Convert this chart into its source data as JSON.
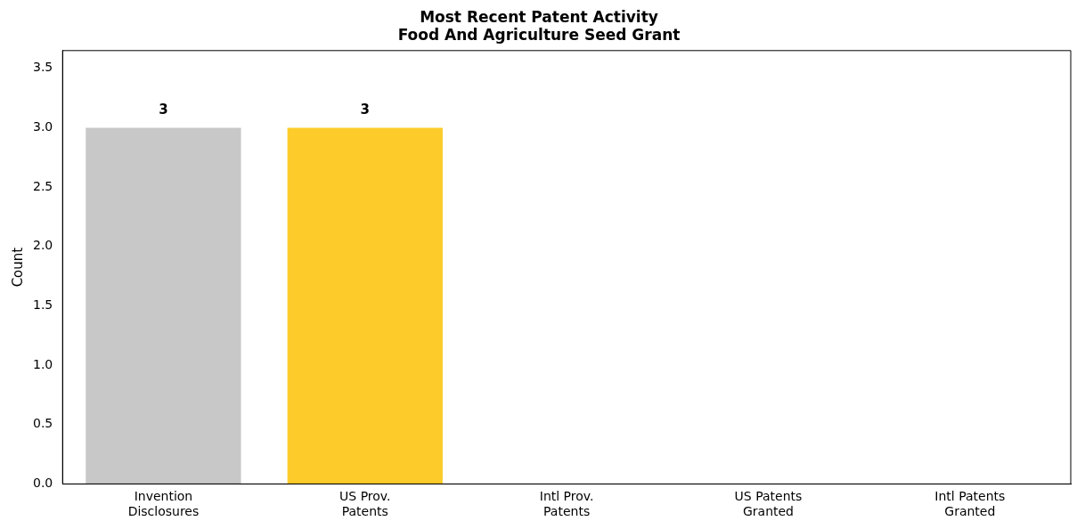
{
  "chart_data": {
    "type": "bar",
    "title": "Most Recent Patent Activity",
    "subtitle": "Food And Agriculture Seed Grant",
    "ylabel": "Count",
    "categories": [
      "Invention Disclosures",
      "US Prov. Patents",
      "Intl Prov. Patents",
      "US Patents Granted",
      "Intl Patents Granted"
    ],
    "values": [
      3,
      3,
      0,
      0,
      0
    ],
    "colors": [
      "#c8c8c8",
      "#fdcc2a",
      "#4a90c8",
      "#4aa05a",
      "#c85050"
    ],
    "value_labels": [
      "3",
      "3",
      null,
      null,
      null
    ],
    "ylim": [
      0,
      3.65
    ],
    "yticks": [
      {
        "value": 0,
        "label": "0.0"
      },
      {
        "value": 0.5,
        "label": "0.5"
      },
      {
        "value": 1,
        "label": "1.0"
      },
      {
        "value": 1.5,
        "label": "1.5"
      },
      {
        "value": 2,
        "label": "2.0"
      },
      {
        "value": 2.5,
        "label": "2.5"
      },
      {
        "value": 3,
        "label": "3.0"
      },
      {
        "value": 3.5,
        "label": "3.5"
      }
    ],
    "grid": false,
    "legend": false
  }
}
